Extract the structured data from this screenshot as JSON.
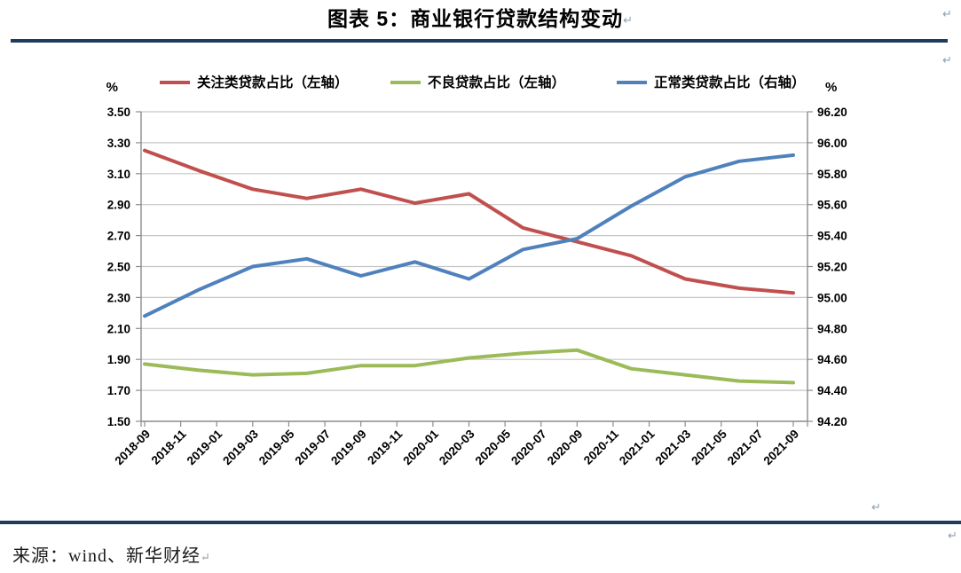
{
  "title": "图表 5：商业银行贷款结构变动",
  "source": "来源：wind、新华财经",
  "paragraph_mark": "↵",
  "colors": {
    "focus_loans": "#C0504D",
    "npl": "#9BBB59",
    "normal_loans": "#4F81BD",
    "rule": "#1F3C5F",
    "gridline": "#C6C6C6",
    "axis_line": "#8C8C8C"
  },
  "chart_data": {
    "type": "line",
    "title": "图表 5：商业银行贷款结构变动",
    "x_tick_labels": [
      "2018-09",
      "2018-11",
      "2019-01",
      "2019-03",
      "2019-05",
      "2019-07",
      "2019-09",
      "2019-11",
      "2020-01",
      "2020-03",
      "2020-05",
      "2020-07",
      "2020-09",
      "2020-11",
      "2021-01",
      "2021-03",
      "2021-05",
      "2021-07",
      "2021-09"
    ],
    "x_dates_of_points": [
      "2018-09",
      "2018-12",
      "2019-03",
      "2019-06",
      "2019-09",
      "2019-12",
      "2020-03",
      "2020-06",
      "2020-09",
      "2020-12",
      "2021-03",
      "2021-06",
      "2021-09"
    ],
    "series": [
      {
        "name": "关注类贷款占比（左轴）",
        "axis": "left",
        "color": "#C0504D",
        "values": [
          3.25,
          3.12,
          3.0,
          2.94,
          3.0,
          2.91,
          2.97,
          2.75,
          2.66,
          2.57,
          2.42,
          2.36,
          2.33
        ]
      },
      {
        "name": "不良贷款占比（左轴）",
        "axis": "left",
        "color": "#9BBB59",
        "values": [
          1.87,
          1.83,
          1.8,
          1.81,
          1.86,
          1.86,
          1.91,
          1.94,
          1.96,
          1.84,
          1.8,
          1.76,
          1.75
        ]
      },
      {
        "name": "正常类贷款占比（右轴）",
        "axis": "right",
        "color": "#4F81BD",
        "values": [
          94.88,
          95.05,
          95.2,
          95.25,
          95.14,
          95.23,
          95.12,
          95.31,
          95.38,
          95.59,
          95.78,
          95.88,
          95.92
        ]
      }
    ],
    "left_axis": {
      "unit": "%",
      "min": 1.5,
      "max": 3.5,
      "step": 0.2,
      "ticks": [
        "3.50",
        "3.30",
        "3.10",
        "2.90",
        "2.70",
        "2.50",
        "2.30",
        "2.10",
        "1.90",
        "1.70",
        "1.50"
      ]
    },
    "right_axis": {
      "unit": "%",
      "min": 94.2,
      "max": 96.2,
      "step": 0.2,
      "ticks": [
        "96.20",
        "96.00",
        "95.80",
        "95.60",
        "95.40",
        "95.20",
        "95.00",
        "94.80",
        "94.60",
        "94.40",
        "94.20"
      ]
    },
    "grid": true,
    "legend_position": "top"
  }
}
